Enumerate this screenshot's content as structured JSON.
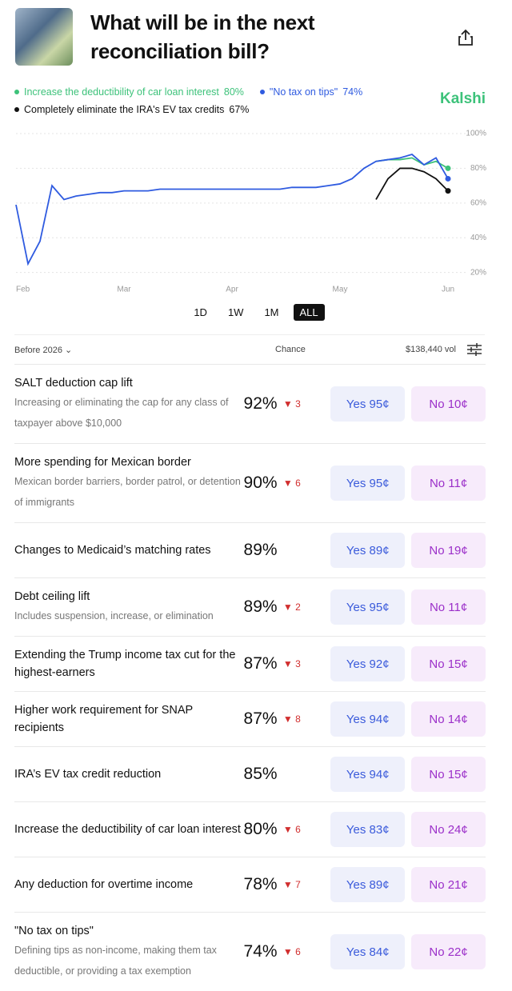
{
  "header": {
    "title": "What will be in the next reconciliation bill?",
    "brand": "Kalshi"
  },
  "chart_data": {
    "type": "line",
    "categories": [
      "Feb",
      null,
      null,
      null,
      null,
      null,
      null,
      null,
      null,
      "Mar",
      null,
      null,
      null,
      null,
      null,
      null,
      null,
      null,
      "Apr",
      null,
      null,
      null,
      null,
      null,
      null,
      null,
      null,
      "May",
      null,
      null,
      null,
      null,
      null,
      null,
      null,
      null,
      "Jun"
    ],
    "series": [
      {
        "name": "Increase the deductibility of car loan interest",
        "value_label": "80%",
        "color": "#3dc27a",
        "values": [
          null,
          null,
          null,
          null,
          null,
          null,
          null,
          null,
          null,
          null,
          null,
          null,
          null,
          null,
          null,
          null,
          null,
          null,
          null,
          null,
          null,
          null,
          null,
          null,
          null,
          null,
          null,
          null,
          null,
          null,
          84,
          85,
          85,
          86,
          82,
          84,
          80
        ]
      },
      {
        "name": "\"No tax on tips\"",
        "value_label": "74%",
        "color": "#2f5be0",
        "values": [
          59,
          25,
          38,
          70,
          62,
          64,
          65,
          66,
          66,
          67,
          67,
          67,
          68,
          68,
          68,
          68,
          68,
          68,
          68,
          68,
          68,
          68,
          68,
          69,
          69,
          69,
          70,
          71,
          74,
          80,
          84,
          85,
          86,
          88,
          82,
          86,
          74
        ]
      },
      {
        "name": "Completely eliminate the IRA's EV tax credits",
        "value_label": "67%",
        "color": "#111111",
        "values": [
          null,
          null,
          null,
          null,
          null,
          null,
          null,
          null,
          null,
          null,
          null,
          null,
          null,
          null,
          null,
          null,
          null,
          null,
          null,
          null,
          null,
          null,
          null,
          null,
          null,
          null,
          null,
          null,
          null,
          null,
          62,
          74,
          80,
          80,
          78,
          74,
          67
        ]
      }
    ],
    "ylim": [
      18,
      100
    ],
    "yticks": [
      {
        "value": 100,
        "label": "100%"
      },
      {
        "value": 80,
        "label": "80%"
      },
      {
        "value": 60,
        "label": "60%"
      },
      {
        "value": 40,
        "label": "40%"
      },
      {
        "value": 20,
        "label": "20%"
      }
    ],
    "grid": true
  },
  "ranges": {
    "options": [
      "1D",
      "1W",
      "1M",
      "ALL"
    ],
    "selected": 3
  },
  "table": {
    "filter": "Before 2026",
    "chance_header": "Chance",
    "volume": "$138,440 vol",
    "rows": [
      {
        "title": "SALT deduction cap lift",
        "subtitle": "Increasing or eliminating the cap for any class of taxpayer above $10,000",
        "chance": "92%",
        "change": 3,
        "yes": "Yes 95¢",
        "no": "No 10¢"
      },
      {
        "title": "More spending for Mexican border",
        "subtitle": "Mexican border barriers, border patrol, or detention of immigrants",
        "chance": "90%",
        "change": 6,
        "yes": "Yes 95¢",
        "no": "No 11¢"
      },
      {
        "title": "Changes to Medicaid’s matching rates",
        "chance": "89%",
        "yes": "Yes 89¢",
        "no": "No 19¢"
      },
      {
        "title": "Debt ceiling lift",
        "subtitle": "Includes suspension, increase, or elimination",
        "chance": "89%",
        "change": 2,
        "yes": "Yes 95¢",
        "no": "No 11¢"
      },
      {
        "title": "Extending the Trump income tax cut for the highest-earners",
        "chance": "87%",
        "change": 3,
        "yes": "Yes 92¢",
        "no": "No 15¢"
      },
      {
        "title": "Higher work requirement for SNAP recipients",
        "chance": "87%",
        "change": 8,
        "yes": "Yes 94¢",
        "no": "No 14¢"
      },
      {
        "title": "IRA’s EV tax credit reduction",
        "chance": "85%",
        "yes": "Yes 94¢",
        "no": "No 15¢"
      },
      {
        "title": "Increase the deductibility of car loan interest",
        "chance": "80%",
        "change": 6,
        "yes": "Yes 83¢",
        "no": "No 24¢"
      },
      {
        "title": "Any deduction for overtime income",
        "chance": "78%",
        "change": 7,
        "yes": "Yes 89¢",
        "no": "No 21¢"
      },
      {
        "title": "\"No tax on tips\"",
        "subtitle": "Defining tips as non-income, making them tax deductible, or providing a tax exemption",
        "chance": "74%",
        "change": 6,
        "yes": "Yes 84¢",
        "no": "No 22¢"
      }
    ]
  }
}
